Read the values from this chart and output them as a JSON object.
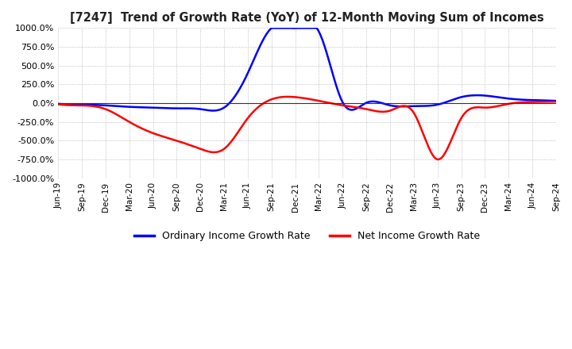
{
  "title": "[7247]  Trend of Growth Rate (YoY) of 12-Month Moving Sum of Incomes",
  "ylim": [
    -1000,
    1000
  ],
  "yticks": [
    -1000,
    -750,
    -500,
    -250,
    0,
    250,
    500,
    750,
    1000
  ],
  "ytick_labels": [
    "-1000.0%",
    "-750.0%",
    "-500.0%",
    "-250.0%",
    "0.0%",
    "250.0%",
    "500.0%",
    "750.0%",
    "1000.0%"
  ],
  "legend_labels": [
    "Ordinary Income Growth Rate",
    "Net Income Growth Rate"
  ],
  "legend_colors": [
    "#0000ff",
    "#ff0000"
  ],
  "background_color": "#ffffff",
  "grid_color": "#b0b0b0",
  "x_labels": [
    "Jun-19",
    "Sep-19",
    "Dec-19",
    "Mar-20",
    "Jun-20",
    "Sep-20",
    "Dec-20",
    "Mar-21",
    "Jun-21",
    "Sep-21",
    "Dec-21",
    "Mar-22",
    "Jun-22",
    "Sep-22",
    "Dec-22",
    "Mar-23",
    "Jun-23",
    "Sep-23",
    "Dec-23",
    "Mar-24",
    "Jun-24",
    "Sep-24"
  ],
  "ordinary_income_growth": [
    -10,
    -20,
    -30,
    -50,
    -60,
    -70,
    -80,
    -60,
    400,
    1000,
    1000,
    950,
    10,
    5,
    -30,
    -40,
    -20,
    80,
    100,
    60,
    40,
    30
  ],
  "net_income_growth": [
    -15,
    -30,
    -80,
    -250,
    -400,
    -500,
    -610,
    -610,
    -200,
    50,
    80,
    30,
    -30,
    -80,
    -100,
    -130,
    -750,
    -200,
    -60,
    -10,
    15,
    20
  ]
}
